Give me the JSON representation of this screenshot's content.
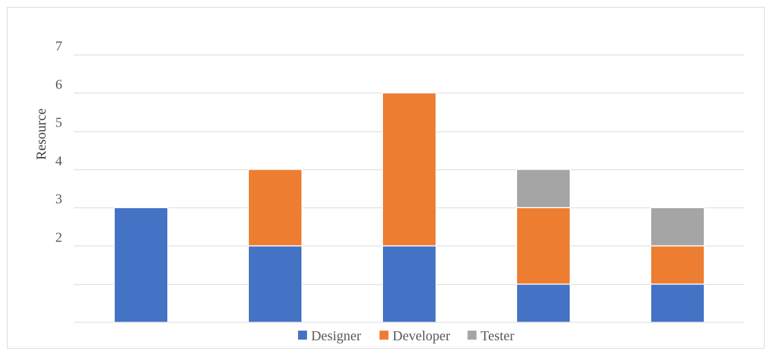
{
  "chart_data": {
    "type": "bar",
    "stacked": true,
    "categories": [
      "",
      "",
      "",
      "",
      ""
    ],
    "series": [
      {
        "name": "Designer",
        "color": "#4472C4",
        "values": [
          3,
          2,
          2,
          1,
          1
        ]
      },
      {
        "name": "Developer",
        "color": "#ED7D31",
        "values": [
          0,
          2,
          4,
          2,
          1
        ]
      },
      {
        "name": "Tester",
        "color": "#A5A5A5",
        "values": [
          0,
          0,
          0,
          1,
          1
        ]
      }
    ],
    "title": "",
    "xlabel": "",
    "ylabel": "Resource",
    "ylim": [
      0,
      7
    ],
    "y_ticks": [
      2,
      3,
      4,
      5,
      6,
      7
    ],
    "grid": true,
    "legend_position": "bottom"
  }
}
